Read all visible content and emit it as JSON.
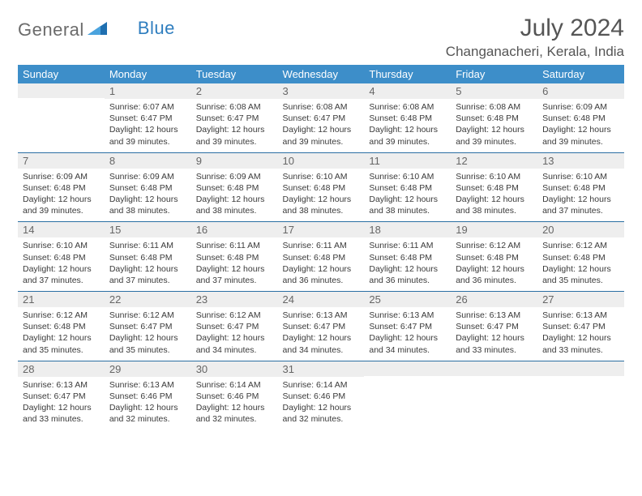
{
  "logo": {
    "part1": "General",
    "part2": "Blue",
    "icon_color": "#2f7ebf"
  },
  "header": {
    "title": "July 2024",
    "location": "Changanacheri, Kerala, India"
  },
  "colors": {
    "header_bg": "#3d8ec9",
    "row_border": "#2b6fa3",
    "daynum_bg": "#eeeeee",
    "text": "#333333"
  },
  "dayNames": [
    "Sunday",
    "Monday",
    "Tuesday",
    "Wednesday",
    "Thursday",
    "Friday",
    "Saturday"
  ],
  "weeks": [
    [
      {
        "n": "",
        "lines": []
      },
      {
        "n": "1",
        "lines": [
          "Sunrise: 6:07 AM",
          "Sunset: 6:47 PM",
          "Daylight: 12 hours and 39 minutes."
        ]
      },
      {
        "n": "2",
        "lines": [
          "Sunrise: 6:08 AM",
          "Sunset: 6:47 PM",
          "Daylight: 12 hours and 39 minutes."
        ]
      },
      {
        "n": "3",
        "lines": [
          "Sunrise: 6:08 AM",
          "Sunset: 6:47 PM",
          "Daylight: 12 hours and 39 minutes."
        ]
      },
      {
        "n": "4",
        "lines": [
          "Sunrise: 6:08 AM",
          "Sunset: 6:48 PM",
          "Daylight: 12 hours and 39 minutes."
        ]
      },
      {
        "n": "5",
        "lines": [
          "Sunrise: 6:08 AM",
          "Sunset: 6:48 PM",
          "Daylight: 12 hours and 39 minutes."
        ]
      },
      {
        "n": "6",
        "lines": [
          "Sunrise: 6:09 AM",
          "Sunset: 6:48 PM",
          "Daylight: 12 hours and 39 minutes."
        ]
      }
    ],
    [
      {
        "n": "7",
        "lines": [
          "Sunrise: 6:09 AM",
          "Sunset: 6:48 PM",
          "Daylight: 12 hours and 39 minutes."
        ]
      },
      {
        "n": "8",
        "lines": [
          "Sunrise: 6:09 AM",
          "Sunset: 6:48 PM",
          "Daylight: 12 hours and 38 minutes."
        ]
      },
      {
        "n": "9",
        "lines": [
          "Sunrise: 6:09 AM",
          "Sunset: 6:48 PM",
          "Daylight: 12 hours and 38 minutes."
        ]
      },
      {
        "n": "10",
        "lines": [
          "Sunrise: 6:10 AM",
          "Sunset: 6:48 PM",
          "Daylight: 12 hours and 38 minutes."
        ]
      },
      {
        "n": "11",
        "lines": [
          "Sunrise: 6:10 AM",
          "Sunset: 6:48 PM",
          "Daylight: 12 hours and 38 minutes."
        ]
      },
      {
        "n": "12",
        "lines": [
          "Sunrise: 6:10 AM",
          "Sunset: 6:48 PM",
          "Daylight: 12 hours and 38 minutes."
        ]
      },
      {
        "n": "13",
        "lines": [
          "Sunrise: 6:10 AM",
          "Sunset: 6:48 PM",
          "Daylight: 12 hours and 37 minutes."
        ]
      }
    ],
    [
      {
        "n": "14",
        "lines": [
          "Sunrise: 6:10 AM",
          "Sunset: 6:48 PM",
          "Daylight: 12 hours and 37 minutes."
        ]
      },
      {
        "n": "15",
        "lines": [
          "Sunrise: 6:11 AM",
          "Sunset: 6:48 PM",
          "Daylight: 12 hours and 37 minutes."
        ]
      },
      {
        "n": "16",
        "lines": [
          "Sunrise: 6:11 AM",
          "Sunset: 6:48 PM",
          "Daylight: 12 hours and 37 minutes."
        ]
      },
      {
        "n": "17",
        "lines": [
          "Sunrise: 6:11 AM",
          "Sunset: 6:48 PM",
          "Daylight: 12 hours and 36 minutes."
        ]
      },
      {
        "n": "18",
        "lines": [
          "Sunrise: 6:11 AM",
          "Sunset: 6:48 PM",
          "Daylight: 12 hours and 36 minutes."
        ]
      },
      {
        "n": "19",
        "lines": [
          "Sunrise: 6:12 AM",
          "Sunset: 6:48 PM",
          "Daylight: 12 hours and 36 minutes."
        ]
      },
      {
        "n": "20",
        "lines": [
          "Sunrise: 6:12 AM",
          "Sunset: 6:48 PM",
          "Daylight: 12 hours and 35 minutes."
        ]
      }
    ],
    [
      {
        "n": "21",
        "lines": [
          "Sunrise: 6:12 AM",
          "Sunset: 6:48 PM",
          "Daylight: 12 hours and 35 minutes."
        ]
      },
      {
        "n": "22",
        "lines": [
          "Sunrise: 6:12 AM",
          "Sunset: 6:47 PM",
          "Daylight: 12 hours and 35 minutes."
        ]
      },
      {
        "n": "23",
        "lines": [
          "Sunrise: 6:12 AM",
          "Sunset: 6:47 PM",
          "Daylight: 12 hours and 34 minutes."
        ]
      },
      {
        "n": "24",
        "lines": [
          "Sunrise: 6:13 AM",
          "Sunset: 6:47 PM",
          "Daylight: 12 hours and 34 minutes."
        ]
      },
      {
        "n": "25",
        "lines": [
          "Sunrise: 6:13 AM",
          "Sunset: 6:47 PM",
          "Daylight: 12 hours and 34 minutes."
        ]
      },
      {
        "n": "26",
        "lines": [
          "Sunrise: 6:13 AM",
          "Sunset: 6:47 PM",
          "Daylight: 12 hours and 33 minutes."
        ]
      },
      {
        "n": "27",
        "lines": [
          "Sunrise: 6:13 AM",
          "Sunset: 6:47 PM",
          "Daylight: 12 hours and 33 minutes."
        ]
      }
    ],
    [
      {
        "n": "28",
        "lines": [
          "Sunrise: 6:13 AM",
          "Sunset: 6:47 PM",
          "Daylight: 12 hours and 33 minutes."
        ]
      },
      {
        "n": "29",
        "lines": [
          "Sunrise: 6:13 AM",
          "Sunset: 6:46 PM",
          "Daylight: 12 hours and 32 minutes."
        ]
      },
      {
        "n": "30",
        "lines": [
          "Sunrise: 6:14 AM",
          "Sunset: 6:46 PM",
          "Daylight: 12 hours and 32 minutes."
        ]
      },
      {
        "n": "31",
        "lines": [
          "Sunrise: 6:14 AM",
          "Sunset: 6:46 PM",
          "Daylight: 12 hours and 32 minutes."
        ]
      },
      {
        "n": "",
        "lines": []
      },
      {
        "n": "",
        "lines": []
      },
      {
        "n": "",
        "lines": []
      }
    ]
  ]
}
